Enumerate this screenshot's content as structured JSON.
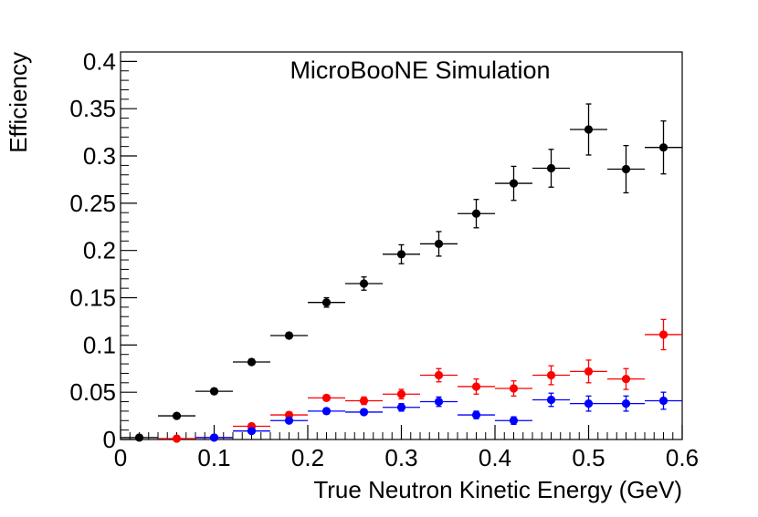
{
  "chart_data": {
    "type": "scatter",
    "title": "MicroBooNE Simulation",
    "xlabel": "True Neutron Kinetic Energy (GeV)",
    "ylabel": "Efficiency",
    "xlim": [
      0,
      0.6
    ],
    "ylim": [
      0,
      0.41
    ],
    "x_ticks": [
      "0",
      "0.1",
      "0.2",
      "0.3",
      "0.4",
      "0.5",
      "0.6"
    ],
    "y_ticks": [
      "0",
      "0.05",
      "0.1",
      "0.15",
      "0.2",
      "0.25",
      "0.3",
      "0.35",
      "0.4"
    ],
    "bin_half_width": 0.02,
    "grid": false,
    "legend": "none",
    "series": [
      {
        "color": "#000000",
        "x": [
          0.02,
          0.06,
          0.1,
          0.14,
          0.18,
          0.22,
          0.26,
          0.3,
          0.34,
          0.38,
          0.42,
          0.46,
          0.5,
          0.54,
          0.58
        ],
        "y": [
          0.002,
          0.025,
          0.051,
          0.082,
          0.11,
          0.145,
          0.165,
          0.196,
          0.207,
          0.239,
          0.271,
          0.287,
          0.328,
          0.286,
          0.309
        ],
        "yerr": [
          0.001,
          0.002,
          0.003,
          0.003,
          0.003,
          0.005,
          0.007,
          0.01,
          0.013,
          0.015,
          0.018,
          0.02,
          0.027,
          0.025,
          0.028
        ]
      },
      {
        "color": "#ff0000",
        "x": [
          0.06,
          0.1,
          0.14,
          0.18,
          0.22,
          0.26,
          0.3,
          0.34,
          0.38,
          0.42,
          0.46,
          0.5,
          0.54,
          0.58
        ],
        "y": [
          0.001,
          0.002,
          0.014,
          0.026,
          0.044,
          0.041,
          0.048,
          0.068,
          0.056,
          0.054,
          0.068,
          0.072,
          0.064,
          0.111
        ],
        "yerr": [
          0.001,
          0.001,
          0.002,
          0.003,
          0.003,
          0.004,
          0.005,
          0.007,
          0.008,
          0.008,
          0.01,
          0.012,
          0.011,
          0.016
        ]
      },
      {
        "color": "#0000ff",
        "x": [
          0.1,
          0.14,
          0.18,
          0.22,
          0.26,
          0.3,
          0.34,
          0.38,
          0.42,
          0.46,
          0.5,
          0.54,
          0.58
        ],
        "y": [
          0.002,
          0.009,
          0.02,
          0.03,
          0.029,
          0.034,
          0.04,
          0.026,
          0.02,
          0.042,
          0.038,
          0.038,
          0.041
        ],
        "yerr": [
          0.001,
          0.002,
          0.002,
          0.003,
          0.003,
          0.004,
          0.005,
          0.004,
          0.004,
          0.007,
          0.008,
          0.008,
          0.009
        ]
      }
    ]
  }
}
